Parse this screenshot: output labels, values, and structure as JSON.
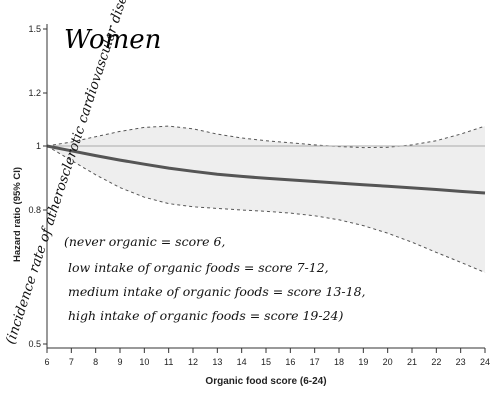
{
  "chart_data": {
    "type": "line",
    "title": "Women",
    "xlabel": "Organic food score (6-24)",
    "ylabel": "Hazard ratio (95% CI)",
    "ylabel_handwritten": "(incidence rate of atherosclerotic cardiovascular disease)",
    "x_ticks": [
      "6",
      "7",
      "8",
      "9",
      "10",
      "11",
      "12",
      "13",
      "14",
      "15",
      "16",
      "17",
      "18",
      "19",
      "20",
      "21",
      "22",
      "23",
      "24"
    ],
    "y_ticks": [
      "0.5",
      "0.8",
      "1",
      "1.2",
      "1.5"
    ],
    "xlim": [
      6,
      24
    ],
    "ylim": [
      0.5,
      1.5
    ],
    "reference_line": 1,
    "series": [
      {
        "role": "estimate",
        "x": [
          6,
          7,
          8,
          9,
          10,
          11,
          12,
          13,
          14,
          15,
          16,
          17,
          18,
          19,
          20,
          21,
          22,
          23,
          24
        ],
        "values": [
          1.0,
          0.985,
          0.97,
          0.956,
          0.943,
          0.931,
          0.921,
          0.912,
          0.905,
          0.899,
          0.894,
          0.889,
          0.884,
          0.879,
          0.874,
          0.869,
          0.864,
          0.858,
          0.853
        ]
      },
      {
        "role": "ci_upper",
        "x": [
          6,
          7,
          8,
          9,
          10,
          11,
          12,
          13,
          14,
          15,
          16,
          17,
          18,
          19,
          20,
          21,
          22,
          23,
          24
        ],
        "values": [
          1.0,
          1.015,
          1.035,
          1.055,
          1.07,
          1.075,
          1.065,
          1.045,
          1.03,
          1.02,
          1.012,
          1.004,
          0.998,
          0.995,
          0.996,
          1.004,
          1.02,
          1.045,
          1.075
        ]
      },
      {
        "role": "ci_lower",
        "x": [
          6,
          7,
          8,
          9,
          10,
          11,
          12,
          13,
          14,
          15,
          16,
          17,
          18,
          19,
          20,
          21,
          22,
          23,
          24
        ],
        "values": [
          1.0,
          0.955,
          0.91,
          0.87,
          0.84,
          0.82,
          0.81,
          0.805,
          0.8,
          0.797,
          0.793,
          0.787,
          0.778,
          0.765,
          0.748,
          0.728,
          0.705,
          0.683,
          0.66
        ]
      }
    ],
    "annotations": [
      "(never organic = score 6,",
      "low intake of organic foods = score 7-12,",
      "medium intake of organic foods = score 13-18,",
      "high intake of organic foods = score 19-24)"
    ],
    "colors": {
      "estimate": "#555555",
      "band_fill": "#eeeeee",
      "band_edge": "#555555",
      "reference": "#aaaaaa"
    }
  }
}
